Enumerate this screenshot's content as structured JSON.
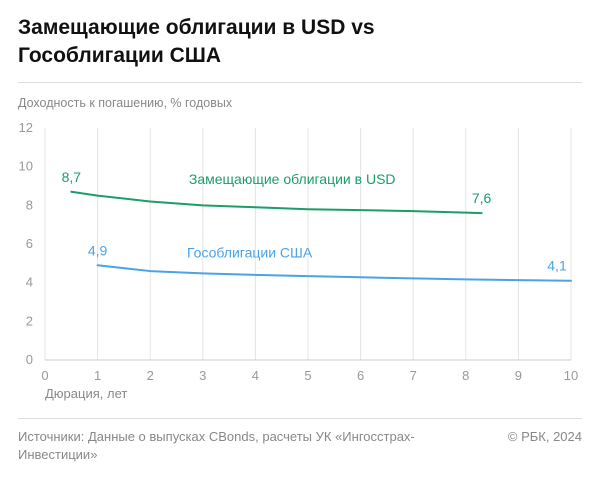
{
  "header": {
    "title_line1": "Замещающие облигации в USD vs",
    "title_line2": "Гособлигации США"
  },
  "footer": {
    "source_line1": "Источники: Данные о выпусках CBonds, расчеты УК «Ингосстрах-",
    "source_line2": "Инвестиции»",
    "copyright": "© РБК, 2024"
  },
  "chart_data": {
    "type": "line",
    "title": "Замещающие облигации в USD vs Гособлигации США",
    "xlabel": "Дюрация, лет",
    "ylabel": "Доходность к погашению, % годовых",
    "xlim": [
      0,
      10
    ],
    "ylim": [
      0,
      12
    ],
    "xticks": [
      "0",
      "1",
      "2",
      "3",
      "4",
      "5",
      "6",
      "7",
      "8",
      "9",
      "10"
    ],
    "yticks": [
      "0",
      "2",
      "4",
      "6",
      "8",
      "10",
      "12"
    ],
    "grid": "vertical",
    "series": [
      {
        "name": "Замещающие облигации в USD",
        "color": "#1a9e6a",
        "x": [
          0.5,
          1,
          2,
          3,
          4,
          5,
          6,
          7,
          8,
          8.3
        ],
        "y": [
          8.7,
          8.5,
          8.2,
          8.0,
          7.9,
          7.8,
          7.75,
          7.7,
          7.62,
          7.6
        ],
        "start_label": "8,7",
        "end_label": "7,6"
      },
      {
        "name": "Гособлигации США",
        "color": "#4aa3e8",
        "x": [
          1,
          2,
          3,
          4,
          5,
          6,
          7,
          8,
          9,
          10
        ],
        "y": [
          4.9,
          4.6,
          4.48,
          4.4,
          4.34,
          4.28,
          4.22,
          4.17,
          4.13,
          4.1
        ],
        "start_label": "4,9",
        "end_label": "4,1"
      }
    ]
  }
}
